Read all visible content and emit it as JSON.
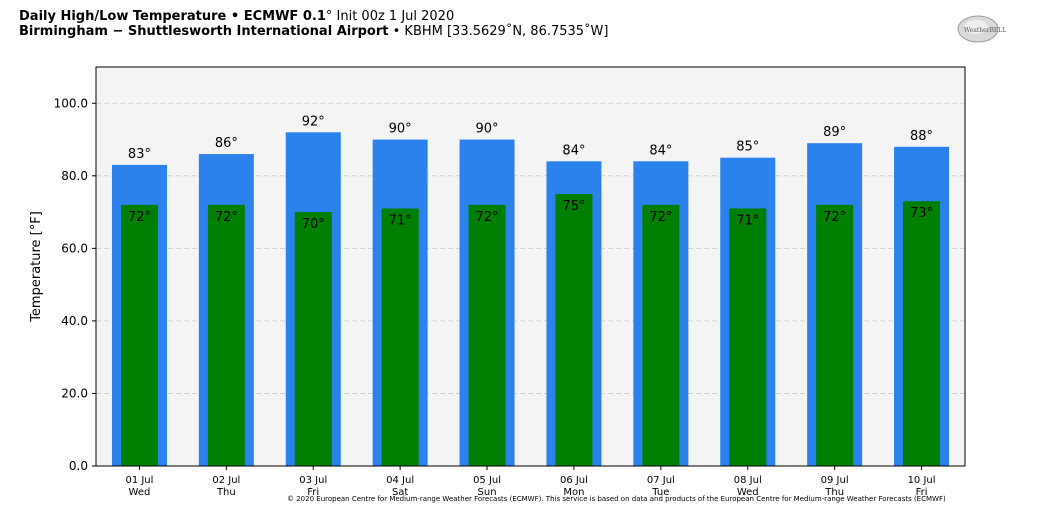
{
  "header": {
    "title_bold": "Daily High/Low Temperature • ECMWF 0.1",
    "title_degree": "°",
    "title_init": " Init 00z 1 Jul 2020",
    "location_bold": "Birmingham − Shuttlesworth International Airport",
    "location_rest": " • KBHM [33.5629˚N, 86.7535˚W]"
  },
  "logo": {
    "icon": "weatherbell-logo",
    "text": "WeatherBELL"
  },
  "footer": {
    "copyright": "© 2020 European Centre for Medium-range Weather Forecasts (ECMWF). This service is based on data and products of the European Centre for Medium-range Weather Forecasts (ECMWF)"
  },
  "colors": {
    "high": "#2b82ec",
    "low": "#007f00",
    "plot_bg": "#f4f4f4",
    "grid": "#cccccc"
  },
  "chart_data": {
    "type": "bar",
    "categories": [
      "01 Jul",
      "02 Jul",
      "03 Jul",
      "04 Jul",
      "05 Jul",
      "06 Jul",
      "07 Jul",
      "08 Jul",
      "09 Jul",
      "10 Jul"
    ],
    "weekdays": [
      "Wed",
      "Thu",
      "Fri",
      "Sat",
      "Sun",
      "Mon",
      "Tue",
      "Wed",
      "Thu",
      "Fri"
    ],
    "series": [
      {
        "values": [
          83,
          86,
          92,
          90,
          90,
          84,
          84,
          85,
          89,
          88
        ],
        "labels": [
          "83°",
          "86°",
          "92°",
          "90°",
          "90°",
          "84°",
          "84°",
          "85°",
          "89°",
          "88°"
        ]
      },
      {
        "values": [
          72,
          72,
          70,
          71,
          72,
          75,
          72,
          71,
          72,
          73
        ],
        "labels": [
          "72°",
          "72°",
          "70°",
          "71°",
          "72°",
          "75°",
          "72°",
          "71°",
          "72°",
          "73°"
        ]
      }
    ],
    "ylabel": "Temperature [°F]",
    "ylim": [
      0,
      110
    ],
    "yticks": [
      0,
      20,
      40,
      60,
      80,
      100
    ],
    "ytick_labels": [
      "0.0",
      "20.0",
      "40.0",
      "60.0",
      "80.0",
      "100.0"
    ],
    "grid": true
  }
}
